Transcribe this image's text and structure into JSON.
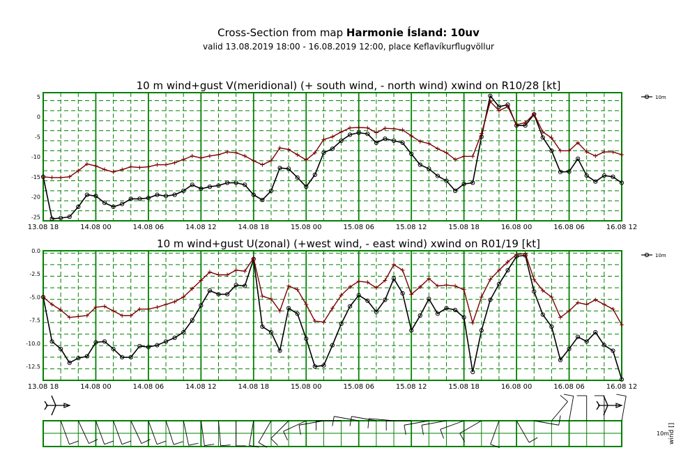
{
  "header": {
    "title_prefix": "Cross-Section from map ",
    "title_bold": "Harmonie Ísland: 10uv",
    "subtitle": "valid 13.08.2019 18:00 - 16.08.2019 12:00, place Keflavíkurflugvöllur"
  },
  "colors": {
    "wind": "#000000",
    "gust": "#7a0000",
    "grid": "#008000"
  },
  "chart_data": [
    {
      "type": "line",
      "title": "10 m wind+gust V(meridional) (+ south wind, - north wind) xwind on R10/28 [kt]",
      "x_start": "13.08 18",
      "x_end": "16.08 12",
      "x_ticks": [
        "13.08 18",
        "14.08 00",
        "14.08 06",
        "14.08 12",
        "14.08 18",
        "15.08 00",
        "15.08 06",
        "15.08 12",
        "15.08 18",
        "16.08 00",
        "16.08 06",
        "16.08 12"
      ],
      "ylim": [
        -26,
        6
      ],
      "y_ticks": [
        5,
        0,
        -5,
        -10,
        -15,
        -20,
        -25
      ],
      "y_tick_labels": [
        "5",
        "0",
        "-5",
        "-10",
        "-15",
        "-20",
        "-25"
      ],
      "legend": "10m",
      "legend_position": "right",
      "series": [
        {
          "role": "wind",
          "marker": "circle",
          "values": [
            -15,
            -25.5,
            -25.3,
            -25,
            -22.5,
            -19.5,
            -19.8,
            -21.5,
            -22.5,
            -21.8,
            -20.5,
            -20.5,
            -20.3,
            -19.5,
            -19.8,
            -19.5,
            -18.5,
            -17,
            -18,
            -17.5,
            -17.2,
            -16.5,
            -16.5,
            -17,
            -19.5,
            -20.8,
            -18.5,
            -12.8,
            -13,
            -15.2,
            -17.5,
            -14.5,
            -9,
            -8,
            -6,
            -4.5,
            -4,
            -4.3,
            -6.5,
            -5.5,
            -6,
            -6.5,
            -9.3,
            -12,
            -13,
            -14.8,
            -16,
            -18.5,
            -16.8,
            -16.5,
            -5,
            5.2,
            2.5,
            3,
            -2.2,
            -2.2,
            0.6,
            -5.2,
            -8.5,
            -13.8,
            -13.7,
            -10.5,
            -14.7,
            -16.2,
            -14.7,
            -15,
            -16.5
          ]
        },
        {
          "role": "gust",
          "marker": "plus",
          "values": [
            -15,
            -15.2,
            -15.2,
            -15,
            -13.5,
            -11.8,
            -12.3,
            -13.2,
            -13.8,
            -13.2,
            -12.5,
            -12.7,
            -12.5,
            -12,
            -12,
            -11.5,
            -10.7,
            -9.8,
            -10.3,
            -9.8,
            -9.5,
            -8.8,
            -9,
            -9.8,
            -11,
            -12,
            -11,
            -7.8,
            -8.2,
            -9.5,
            -10.8,
            -9,
            -5.7,
            -5,
            -3.8,
            -2.8,
            -2.7,
            -2.8,
            -4,
            -2.9,
            -3,
            -3.3,
            -4.8,
            -6.2,
            -6.7,
            -8,
            -9,
            -10.7,
            -9.9,
            -9.9,
            -4.2,
            3.8,
            1.5,
            2.5,
            -2,
            -1.5,
            0.7,
            -3.8,
            -5.3,
            -8.5,
            -8.5,
            -6.5,
            -8.8,
            -9.8,
            -8.8,
            -8.8,
            -9.5
          ]
        }
      ]
    },
    {
      "type": "line",
      "title": "10 m wind+gust U(zonal) (+west wind, - east wind) xwind on R01/19 [kt]",
      "x_start": "13.08 18",
      "x_end": "16.08 12",
      "x_ticks": [
        "13.08 18",
        "14.08 00",
        "14.08 06",
        "14.08 12",
        "14.08 18",
        "15.08 00",
        "15.08 06",
        "15.08 12",
        "15.08 18",
        "16.08 00",
        "16.08 06",
        "16.08 12"
      ],
      "ylim": [
        -14,
        0
      ],
      "y_ticks": [
        0,
        -2.5,
        -5,
        -7.5,
        -10,
        -12.5
      ],
      "y_tick_labels": [
        "0.0",
        "-2.5",
        "-5.0",
        "-7.5",
        "-10.0",
        "-12.5"
      ],
      "legend": "10m",
      "legend_position": "right",
      "series": [
        {
          "role": "wind",
          "marker": "circle",
          "values": [
            -5,
            -9.8,
            -10.6,
            -12.1,
            -11.6,
            -11.4,
            -9.9,
            -9.8,
            -10.6,
            -11.5,
            -11.5,
            -10.3,
            -10.4,
            -10.2,
            -9.8,
            -9.4,
            -8.8,
            -7.5,
            -5.9,
            -4.3,
            -4.7,
            -4.7,
            -3.7,
            -3.8,
            -0.9,
            -8.2,
            -8.8,
            -10.8,
            -6.2,
            -6.8,
            -9.5,
            -12.5,
            -12.4,
            -10.2,
            -7.9,
            -6,
            -4.8,
            -5.4,
            -6.6,
            -5.3,
            -3,
            -4.6,
            -8.6,
            -7,
            -5.2,
            -6.8,
            -6.2,
            -6.4,
            -7.2,
            -13.1,
            -8.6,
            -5.3,
            -3.6,
            -2.1,
            -0.6,
            -0.5,
            -4.4,
            -6.9,
            -8.2,
            -11.8,
            -10.6,
            -9.3,
            -9.8,
            -8.8,
            -10.2,
            -10.8,
            -13.9
          ]
        },
        {
          "role": "gust",
          "marker": "plus",
          "values": [
            -5,
            -5.8,
            -6.4,
            -7.2,
            -7.1,
            -7,
            -6.1,
            -6,
            -6.5,
            -7,
            -7,
            -6.3,
            -6.3,
            -6.1,
            -5.8,
            -5.5,
            -5,
            -4.1,
            -3.2,
            -2.3,
            -2.6,
            -2.6,
            -2.1,
            -2.2,
            -0.8,
            -4.9,
            -5.2,
            -6.5,
            -3.8,
            -4.2,
            -5.8,
            -7.6,
            -7.7,
            -6.2,
            -4.8,
            -3.9,
            -3.3,
            -3.4,
            -4,
            -3.2,
            -1.5,
            -2.1,
            -4.7,
            -3.9,
            -3,
            -3.8,
            -3.7,
            -3.8,
            -4.2,
            -7.8,
            -5,
            -3.1,
            -2.1,
            -1.2,
            -0.4,
            -0.3,
            -3.1,
            -4.3,
            -5,
            -7.2,
            -6.5,
            -5.6,
            -5.8,
            -5.3,
            -5.8,
            -6.3,
            -8
          ]
        }
      ]
    }
  ],
  "barbs": {
    "label_level": "10m",
    "label_axis": "wind []"
  }
}
